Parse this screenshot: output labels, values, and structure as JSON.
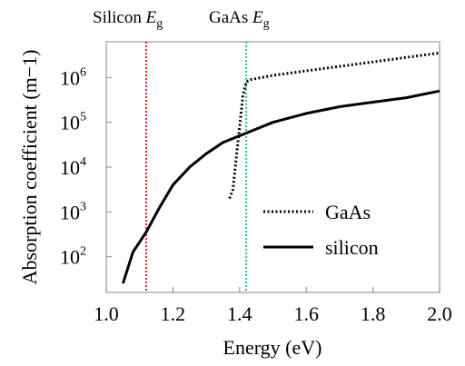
{
  "chart_data": {
    "type": "line",
    "title": "",
    "xlabel": "Energy (eV)",
    "ylabel": "Absorption coefficient (m−1)",
    "xlim": [
      1.0,
      2.0
    ],
    "ylim_log10": [
      1.2,
      6.8
    ],
    "y_scale": "log",
    "x_ticks": [
      {
        "value": 1.0,
        "label": "1.0"
      },
      {
        "value": 1.2,
        "label": "1.2"
      },
      {
        "value": 1.4,
        "label": "1.4"
      },
      {
        "value": 1.6,
        "label": "1.6"
      },
      {
        "value": 1.8,
        "label": "1.8"
      },
      {
        "value": 2.0,
        "label": "2.0"
      }
    ],
    "y_ticks": [
      {
        "exp": 2,
        "base": "10",
        "sup": "2"
      },
      {
        "exp": 3,
        "base": "10",
        "sup": "3"
      },
      {
        "exp": 4,
        "base": "10",
        "sup": "4"
      },
      {
        "exp": 5,
        "base": "10",
        "sup": "5"
      },
      {
        "exp": 6,
        "base": "10",
        "sup": "6"
      }
    ],
    "series": [
      {
        "name": "silicon",
        "style": "solid",
        "color": "#000000",
        "x": [
          1.05,
          1.08,
          1.12,
          1.16,
          1.2,
          1.25,
          1.3,
          1.35,
          1.4,
          1.45,
          1.5,
          1.6,
          1.7,
          1.8,
          1.9,
          2.0
        ],
        "log10_y": [
          1.4,
          2.1,
          2.55,
          3.1,
          3.6,
          4.0,
          4.3,
          4.55,
          4.7,
          4.85,
          5.0,
          5.2,
          5.35,
          5.45,
          5.55,
          5.7
        ]
      },
      {
        "name": "GaAs",
        "style": "dotted",
        "color": "#000000",
        "x": [
          1.37,
          1.38,
          1.39,
          1.4,
          1.41,
          1.42,
          1.43,
          1.5,
          1.6,
          1.7,
          1.8,
          1.9,
          2.0
        ],
        "log10_y": [
          3.3,
          3.5,
          4.2,
          4.9,
          5.6,
          5.9,
          5.95,
          6.05,
          6.15,
          6.25,
          6.35,
          6.45,
          6.55
        ]
      }
    ],
    "bandgaps": [
      {
        "name": "Silicon",
        "label_text": "Silicon ",
        "symbol": "E",
        "subscript": "g",
        "x": 1.12,
        "color": "#e8202a"
      },
      {
        "name": "GaAs",
        "label_text": "GaAs ",
        "symbol": "E",
        "subscript": "g",
        "x": 1.42,
        "color": "#1fbfa4"
      }
    ],
    "legend": {
      "placement": "bottom-right",
      "entries": [
        "GaAs",
        "silicon"
      ]
    },
    "grid": false
  }
}
